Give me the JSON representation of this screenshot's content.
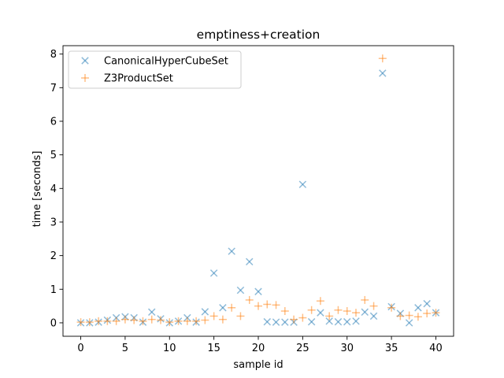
{
  "chart_data": {
    "type": "scatter",
    "title": "emptiness+creation",
    "xlabel": "sample id",
    "ylabel": "time [seconds]",
    "xlim": [
      -2,
      42
    ],
    "ylim": [
      -0.4,
      8.25
    ],
    "xticks": [
      0,
      5,
      10,
      15,
      20,
      25,
      30,
      35,
      40
    ],
    "yticks": [
      0,
      1,
      2,
      3,
      4,
      5,
      6,
      7,
      8
    ],
    "legend_position": "top-left",
    "series": [
      {
        "name": "CanonicalHyperCubeSet",
        "marker": "x",
        "color": "#1f77b4",
        "x": [
          0,
          1,
          2,
          3,
          4,
          5,
          6,
          7,
          8,
          9,
          10,
          11,
          12,
          13,
          14,
          15,
          16,
          17,
          18,
          19,
          20,
          21,
          22,
          23,
          24,
          25,
          26,
          27,
          28,
          29,
          30,
          31,
          32,
          33,
          34,
          35,
          36,
          37,
          38,
          39,
          40
        ],
        "y": [
          0.0,
          0.0,
          0.02,
          0.08,
          0.15,
          0.18,
          0.15,
          0.02,
          0.32,
          0.12,
          0.0,
          0.05,
          0.15,
          0.02,
          0.33,
          1.48,
          0.45,
          2.13,
          0.97,
          1.82,
          0.93,
          0.03,
          0.02,
          0.02,
          0.02,
          4.12,
          0.03,
          0.3,
          0.05,
          0.03,
          0.03,
          0.05,
          0.32,
          0.2,
          7.43,
          0.48,
          0.28,
          0.0,
          0.45,
          0.57,
          0.3
        ]
      },
      {
        "name": "Z3ProductSet",
        "marker": "+",
        "color": "#ff7f0e",
        "x": [
          0,
          1,
          2,
          3,
          4,
          5,
          6,
          7,
          8,
          9,
          10,
          11,
          12,
          13,
          14,
          15,
          16,
          17,
          18,
          19,
          20,
          21,
          22,
          23,
          24,
          25,
          26,
          27,
          28,
          29,
          30,
          31,
          32,
          33,
          34,
          35,
          36,
          37,
          38,
          39,
          40
        ],
        "y": [
          0.02,
          0.02,
          0.05,
          0.05,
          0.05,
          0.1,
          0.08,
          0.05,
          0.1,
          0.08,
          0.02,
          0.05,
          0.05,
          0.05,
          0.08,
          0.2,
          0.1,
          0.45,
          0.2,
          0.68,
          0.5,
          0.55,
          0.53,
          0.35,
          0.1,
          0.15,
          0.38,
          0.65,
          0.2,
          0.38,
          0.35,
          0.3,
          0.68,
          0.5,
          7.87,
          0.45,
          0.2,
          0.22,
          0.18,
          0.28,
          0.3
        ]
      }
    ]
  }
}
